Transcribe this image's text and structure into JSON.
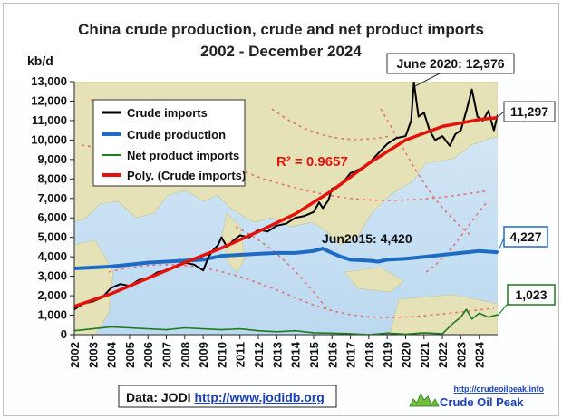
{
  "chart_data": {
    "type": "line",
    "title": "China crude production, crude and net product imports",
    "subtitle": "2002 - December 2024",
    "ylabel": "kb/d",
    "xlabel": "",
    "xlim": [
      2002,
      2025
    ],
    "ylim": [
      0,
      13000
    ],
    "y_ticks": [
      "0",
      "1,000",
      "2,000",
      "3,000",
      "4,000",
      "5,000",
      "6,000",
      "7,000",
      "8,000",
      "9,000",
      "10,000",
      "11,000",
      "12,000",
      "13,000"
    ],
    "x_ticks": [
      "2002",
      "2003",
      "2004",
      "2005",
      "2006",
      "2007",
      "2008",
      "2009",
      "2010",
      "2011",
      "2012",
      "2013",
      "2014",
      "2015",
      "2016",
      "2017",
      "2018",
      "2019",
      "2020",
      "2021",
      "2022",
      "2023",
      "2024"
    ],
    "grid": false,
    "legend_position": "top-left",
    "series": [
      {
        "name": "Crude imports",
        "color": "#000000",
        "x": [
          2002.0,
          2002.5,
          2003.0,
          2003.5,
          2004.0,
          2004.5,
          2005.0,
          2005.5,
          2006.0,
          2006.5,
          2007.0,
          2007.5,
          2008.0,
          2008.5,
          2009.0,
          2009.3,
          2009.5,
          2009.8,
          2010.0,
          2010.3,
          2010.6,
          2011.0,
          2011.5,
          2012.0,
          2012.5,
          2013.0,
          2013.5,
          2014.0,
          2014.5,
          2015.0,
          2015.3,
          2015.5,
          2015.8,
          2016.0,
          2016.5,
          2017.0,
          2017.5,
          2018.0,
          2018.5,
          2019.0,
          2019.5,
          2020.0,
          2020.3,
          2020.45,
          2020.7,
          2021.0,
          2021.3,
          2021.6,
          2022.0,
          2022.4,
          2022.7,
          2023.0,
          2023.3,
          2023.6,
          2023.9,
          2024.2,
          2024.5,
          2024.8,
          2025.0
        ],
        "values": [
          1300,
          1600,
          1700,
          1900,
          2400,
          2600,
          2500,
          2800,
          2900,
          3200,
          3300,
          3500,
          3700,
          3600,
          3300,
          4000,
          4300,
          4600,
          5000,
          4500,
          4800,
          5100,
          5000,
          5400,
          5300,
          5600,
          5700,
          6000,
          6100,
          6300,
          6800,
          6500,
          6900,
          7500,
          7700,
          8300,
          8500,
          8800,
          9300,
          9800,
          10100,
          10200,
          11000,
          12976,
          11200,
          11400,
          10500,
          10000,
          10200,
          9700,
          10300,
          10500,
          11500,
          12600,
          11200,
          11000,
          11500,
          10500,
          11297
        ]
      },
      {
        "name": "Crude production",
        "color": "#1f6bc4",
        "x": [
          2002.0,
          2003.0,
          2004.0,
          2005.0,
          2006.0,
          2007.0,
          2008.0,
          2009.0,
          2010.0,
          2011.0,
          2012.0,
          2013.0,
          2014.0,
          2015.0,
          2015.5,
          2016.0,
          2016.5,
          2017.0,
          2018.0,
          2018.5,
          2019.0,
          2020.0,
          2021.0,
          2022.0,
          2023.0,
          2024.0,
          2025.0
        ],
        "values": [
          3400,
          3450,
          3500,
          3600,
          3700,
          3750,
          3800,
          3850,
          4050,
          4100,
          4150,
          4200,
          4200,
          4300,
          4420,
          4200,
          4000,
          3850,
          3800,
          3750,
          3850,
          3900,
          4000,
          4100,
          4200,
          4300,
          4227
        ]
      },
      {
        "name": "Net product imports",
        "color": "#1f7a1f",
        "x": [
          2002.0,
          2003.0,
          2004.0,
          2005.0,
          2006.0,
          2007.0,
          2008.0,
          2009.0,
          2010.0,
          2011.0,
          2012.0,
          2013.0,
          2014.0,
          2015.0,
          2016.0,
          2017.0,
          2018.0,
          2019.0,
          2020.0,
          2021.0,
          2022.0,
          2022.6,
          2023.0,
          2023.3,
          2023.6,
          2024.0,
          2024.5,
          2025.0
        ],
        "values": [
          200,
          300,
          400,
          350,
          300,
          250,
          350,
          300,
          250,
          300,
          200,
          150,
          200,
          100,
          80,
          50,
          0,
          80,
          30,
          100,
          50,
          600,
          900,
          1300,
          800,
          1100,
          900,
          1023
        ]
      },
      {
        "name": "Poly. (Crude imports)",
        "color": "#e3120b",
        "x": [
          2002.0,
          2004.0,
          2006.0,
          2008.0,
          2010.0,
          2012.0,
          2014.0,
          2016.0,
          2018.0,
          2020.0,
          2022.0,
          2024.0,
          2025.0
        ],
        "values": [
          1450,
          2100,
          2900,
          3700,
          4450,
          5300,
          6200,
          7400,
          8800,
          10000,
          10700,
          11050,
          11150
        ]
      }
    ],
    "annotations": [
      {
        "id": "peak",
        "text": "June 2020: 12,976",
        "x": 2020.45,
        "y": 12976
      },
      {
        "id": "jun2015",
        "text": "Jun2015: 4,420",
        "x": 2015.5,
        "y": 4420
      },
      {
        "id": "r2",
        "text": "R² = 0.9657"
      },
      {
        "id": "last_imports",
        "text": "11,297",
        "y": 11297
      },
      {
        "id": "last_production",
        "text": "4,227",
        "y": 4227
      },
      {
        "id": "last_products",
        "text": "1,023",
        "y": 1023
      }
    ]
  },
  "footer": {
    "source_prefix": "Data: JODI ",
    "source_link": "http://www.jodidb.org",
    "logo_url": "http://crudeoilpeak.info",
    "logo_name": "Crude Oil Peak"
  }
}
